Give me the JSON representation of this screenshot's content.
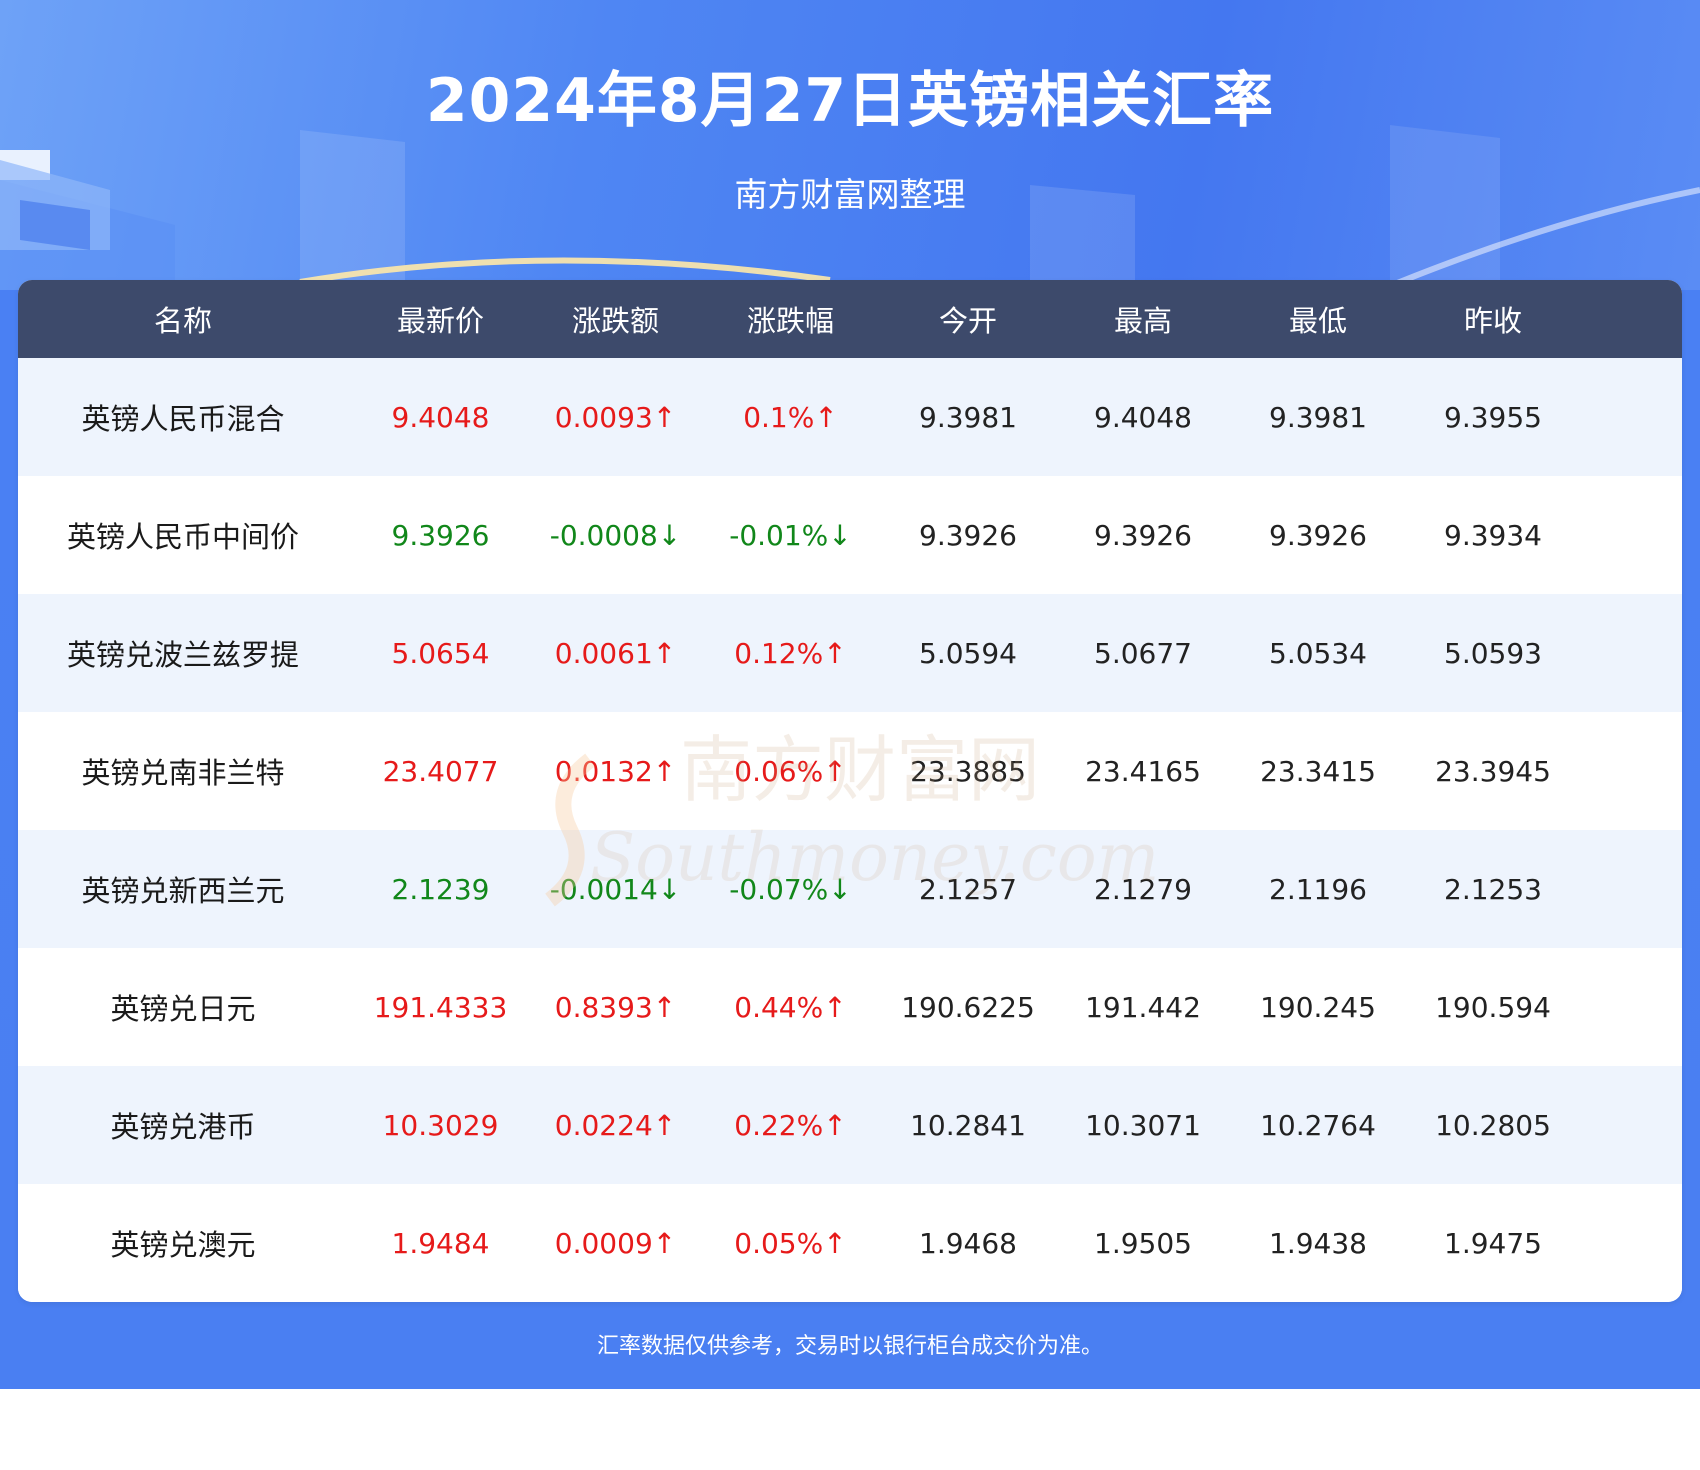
{
  "header": {
    "title": "2024年8月27日英镑相关汇率",
    "subtitle": "南方财富网整理"
  },
  "table": {
    "columns": [
      "名称",
      "最新价",
      "涨跌额",
      "涨跌幅",
      "今开",
      "最高",
      "最低",
      "昨收"
    ],
    "rows": [
      {
        "name": "英镑人民币混合",
        "price": "9.4048",
        "change": "0.0093↑",
        "pct": "0.1%↑",
        "open": "9.3981",
        "high": "9.4048",
        "low": "9.3981",
        "prev": "9.3955",
        "trend": "up"
      },
      {
        "name": "英镑人民币中间价",
        "price": "9.3926",
        "change": "-0.0008↓",
        "pct": "-0.01%↓",
        "open": "9.3926",
        "high": "9.3926",
        "low": "9.3926",
        "prev": "9.3934",
        "trend": "down"
      },
      {
        "name": "英镑兑波兰兹罗提",
        "price": "5.0654",
        "change": "0.0061↑",
        "pct": "0.12%↑",
        "open": "5.0594",
        "high": "5.0677",
        "low": "5.0534",
        "prev": "5.0593",
        "trend": "up"
      },
      {
        "name": "英镑兑南非兰特",
        "price": "23.4077",
        "change": "0.0132↑",
        "pct": "0.06%↑",
        "open": "23.3885",
        "high": "23.4165",
        "low": "23.3415",
        "prev": "23.3945",
        "trend": "up"
      },
      {
        "name": "英镑兑新西兰元",
        "price": "2.1239",
        "change": "-0.0014↓",
        "pct": "-0.07%↓",
        "open": "2.1257",
        "high": "2.1279",
        "low": "2.1196",
        "prev": "2.1253",
        "trend": "down"
      },
      {
        "name": "英镑兑日元",
        "price": "191.4333",
        "change": "0.8393↑",
        "pct": "0.44%↑",
        "open": "190.6225",
        "high": "191.442",
        "low": "190.245",
        "prev": "190.594",
        "trend": "up"
      },
      {
        "name": "英镑兑港币",
        "price": "10.3029",
        "change": "0.0224↑",
        "pct": "0.22%↑",
        "open": "10.2841",
        "high": "10.3071",
        "low": "10.2764",
        "prev": "10.2805",
        "trend": "up"
      },
      {
        "name": "英镑兑澳元",
        "price": "1.9484",
        "change": "0.0009↑",
        "pct": "0.05%↑",
        "open": "1.9468",
        "high": "1.9505",
        "low": "1.9438",
        "prev": "1.9475",
        "trend": "up"
      }
    ]
  },
  "watermark": {
    "line1": "南方财富网",
    "line2": "Southmoney.com"
  },
  "footer": {
    "note": "汇率数据仅供参考，交易时以银行柜台成交价为准。"
  },
  "colors": {
    "up": "#e61a1a",
    "down": "#11871a",
    "header_bg": "#3d4a6b",
    "banner": "#4a7ff2"
  }
}
